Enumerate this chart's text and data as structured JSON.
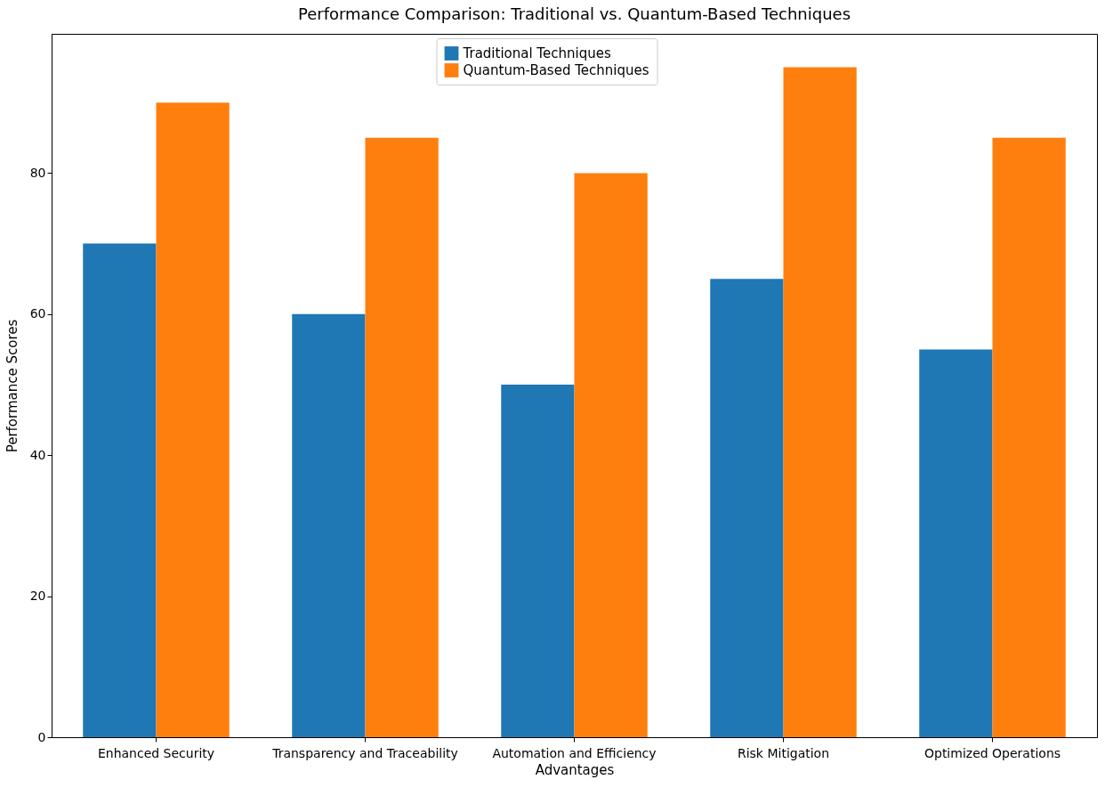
{
  "chart_data": {
    "type": "bar",
    "title": "Performance Comparison: Traditional vs. Quantum-Based Techniques",
    "xlabel": "Advantages",
    "ylabel": "Performance Scores",
    "categories": [
      "Enhanced Security",
      "Transparency and Traceability",
      "Automation and Efficiency",
      "Risk Mitigation",
      "Optimized Operations"
    ],
    "series": [
      {
        "name": "Traditional Techniques",
        "color": "#1f77b4",
        "values": [
          70,
          60,
          50,
          65,
          55
        ]
      },
      {
        "name": "Quantum-Based Techniques",
        "color": "#ff7f0e",
        "values": [
          90,
          85,
          80,
          95,
          85
        ]
      }
    ],
    "ylim": [
      0,
      99.75
    ],
    "yticks": [
      0,
      20,
      40,
      60,
      80
    ],
    "grid": false,
    "legend": "top"
  }
}
